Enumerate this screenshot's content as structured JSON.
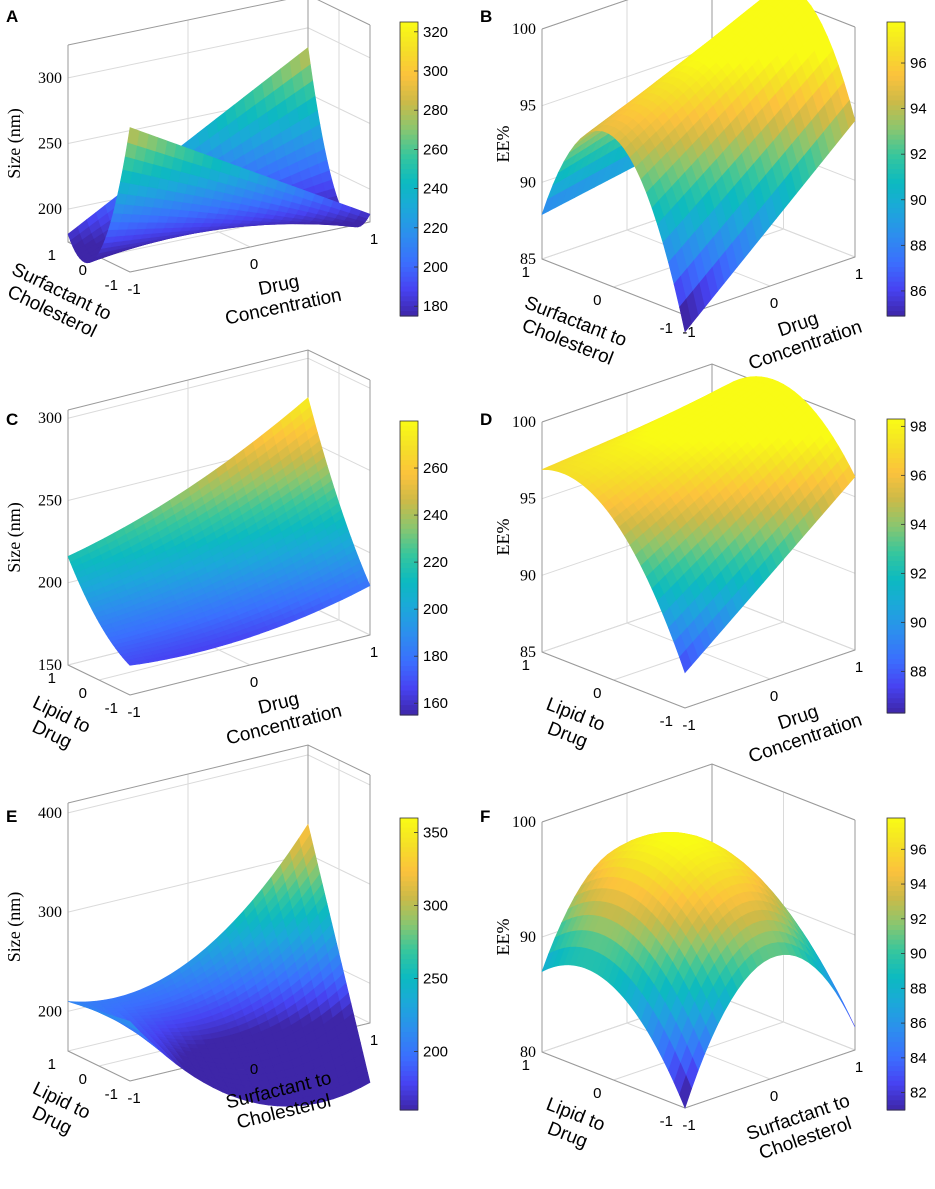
{
  "figure": {
    "layout": "3 rows x 2 columns of 3D response-surface plots"
  },
  "chart_data": [
    {
      "panel": "A",
      "type": "surface3d",
      "zlabel": "Size (nm)",
      "zticks": [
        "200",
        "250",
        "300"
      ],
      "zlim": [
        175,
        325
      ],
      "ylabel_lines": [
        "Surfactant to",
        "Cholesterol"
      ],
      "yticks": [
        "1",
        "0",
        "-1"
      ],
      "xlabel_lines": [
        "Drug",
        "Concentration"
      ],
      "xticks": [
        "-1",
        "0",
        "1"
      ],
      "colorbar": {
        "ticks": [
          "180",
          "200",
          "220",
          "240",
          "260",
          "280",
          "300",
          "320"
        ],
        "range": [
          175,
          325
        ]
      },
      "model": {
        "c": 178,
        "x": 0,
        "y": 0,
        "xx": 0,
        "yy": 55,
        "xy": 52
      }
    },
    {
      "panel": "B",
      "type": "surface3d",
      "zlabel": "EE%",
      "zticks": [
        "85",
        "90",
        "95",
        "100"
      ],
      "zlim": [
        85,
        100
      ],
      "ylabel_lines": [
        "Surfactant to",
        "Cholesterol"
      ],
      "yticks": [
        "1",
        "0",
        "-1"
      ],
      "xlabel_lines": [
        "Drug",
        "Concentration"
      ],
      "xticks": [
        "-1",
        "0",
        "1"
      ],
      "colorbar": {
        "ticks": [
          "86",
          "88",
          "90",
          "92",
          "94",
          "96"
        ],
        "range": [
          84.9,
          97.8
        ]
      },
      "model": {
        "c": 97.8,
        "x": 3,
        "y": 0,
        "xx": 0,
        "yy": -8.9,
        "xy": -2
      }
    },
    {
      "panel": "C",
      "type": "surface3d",
      "zlabel": "Size (nm)",
      "zticks": [
        "150",
        "200",
        "250",
        "300"
      ],
      "zlim": [
        150,
        305
      ],
      "ylabel_lines": [
        "Lipid to",
        "Drug"
      ],
      "yticks": [
        "1",
        "0",
        "-1"
      ],
      "xlabel_lines": [
        "Drug",
        "Concentration"
      ],
      "xticks": [
        "-1",
        "0",
        "1"
      ],
      "colorbar": {
        "ticks": [
          "160",
          "180",
          "200",
          "220",
          "240",
          "260"
        ],
        "range": [
          155,
          280
        ]
      },
      "model": {
        "c": 196,
        "x": 18,
        "y": 36,
        "xx": 7,
        "yy": 7,
        "xy": 12
      }
    },
    {
      "panel": "D",
      "type": "surface3d",
      "zlabel": "EE%",
      "zticks": [
        "85",
        "90",
        "95",
        "100"
      ],
      "zlim": [
        85,
        100
      ],
      "ylabel_lines": [
        "Lipid to",
        "Drug"
      ],
      "yticks": [
        "1",
        "0",
        "-1"
      ],
      "xlabel_lines": [
        "Drug",
        "Concentration"
      ],
      "xticks": [
        "-1",
        "0",
        "1"
      ],
      "colorbar": {
        "ticks": [
          "88",
          "90",
          "92",
          "94",
          "96",
          "98"
        ],
        "range": [
          86.3,
          98.3
        ]
      },
      "model": {
        "c": 98,
        "x": 2.5,
        "y": 2.8,
        "xx": 0,
        "yy": -3.4,
        "xy": -2
      }
    },
    {
      "panel": "E",
      "type": "surface3d",
      "zlabel": "Size (nm)",
      "zticks": [
        "200",
        "300",
        "400"
      ],
      "zlim": [
        160,
        410
      ],
      "ylabel_lines": [
        "Lipid to",
        "Drug"
      ],
      "yticks": [
        "1",
        "0",
        "-1"
      ],
      "xlabel_lines": [
        "Surfactant to",
        "Cholesterol"
      ],
      "xticks": [
        "-1",
        "0",
        "1"
      ],
      "colorbar": {
        "ticks": [
          "200",
          "250",
          "300",
          "350"
        ],
        "range": [
          160,
          360
        ]
      },
      "model": {
        "c": 165,
        "x": 0,
        "y": 55,
        "xx": 50,
        "yy": 0,
        "xy": 60
      }
    },
    {
      "panel": "F",
      "type": "surface3d",
      "zlabel": "EE%",
      "zticks": [
        "80",
        "90",
        "100"
      ],
      "zlim": [
        80,
        100
      ],
      "ylabel_lines": [
        "Lipid to",
        "Drug"
      ],
      "yticks": [
        "1",
        "0",
        "-1"
      ],
      "xlabel_lines": [
        "Surfactant to",
        "Cholesterol"
      ],
      "xticks": [
        "-1",
        "0",
        "1"
      ],
      "colorbar": {
        "ticks": [
          "82",
          "84",
          "86",
          "88",
          "90",
          "92",
          "94",
          "96"
        ],
        "range": [
          81,
          97.8
        ]
      },
      "model": {
        "c": 97.6,
        "x": 0,
        "y": 2.5,
        "xx": -9.5,
        "yy": -4.6,
        "xy": -1
      }
    }
  ],
  "colormap": [
    "#3e26a8",
    "#4743f2",
    "#3b6ffe",
    "#2d8dee",
    "#1ca8da",
    "#0cbac0",
    "#37c69d",
    "#8ac66f",
    "#ccba48",
    "#fcc23d",
    "#f5e027",
    "#f9fb15"
  ]
}
